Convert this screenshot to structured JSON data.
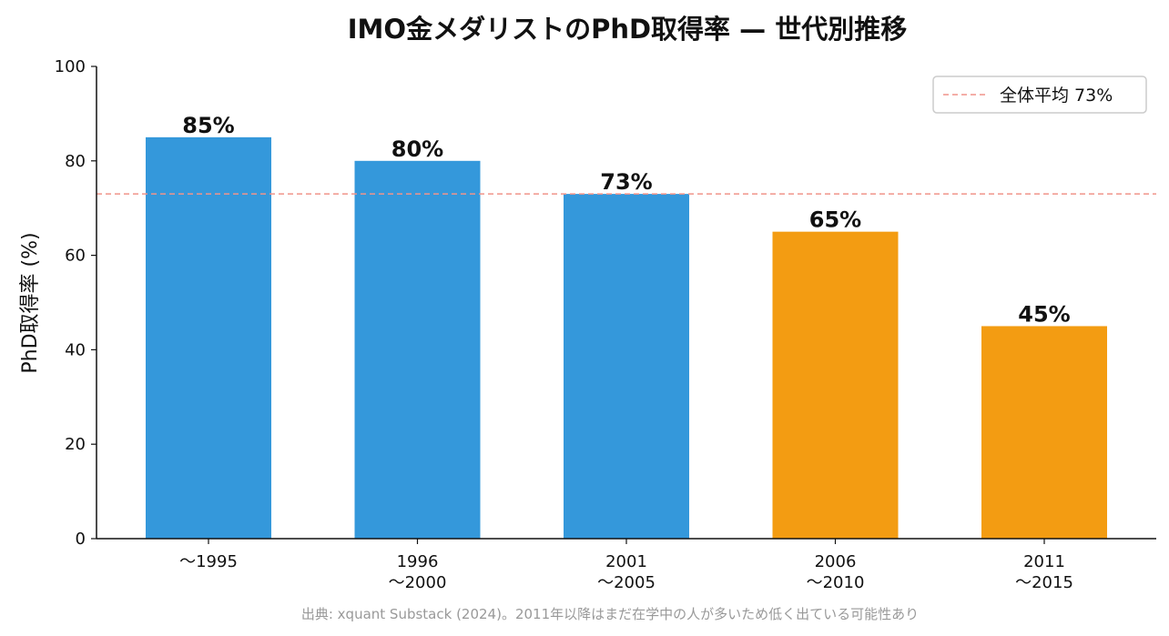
{
  "chart_data": {
    "type": "bar",
    "title": "IMO金メダリストのPhD取得率 — 世代別推移",
    "ylabel": "PhD取得率 (%)",
    "xlabel": "",
    "ylim": [
      0,
      100
    ],
    "yticks": [
      0,
      20,
      40,
      60,
      80,
      100
    ],
    "categories": [
      [
        "〜1995"
      ],
      [
        "1996",
        "〜2000"
      ],
      [
        "2001",
        "〜2005"
      ],
      [
        "2006",
        "〜2010"
      ],
      [
        "2011",
        "〜2015"
      ]
    ],
    "values": [
      85,
      80,
      73,
      65,
      45
    ],
    "value_labels": [
      "85%",
      "80%",
      "73%",
      "65%",
      "45%"
    ],
    "bar_colors": [
      "#3498db",
      "#3498db",
      "#3498db",
      "#f39c12",
      "#f39c12"
    ],
    "reference_line": {
      "value": 73,
      "label": "全体平均 73%",
      "color": "#f1948a",
      "style": "dashed"
    },
    "legend": {
      "placement": "top-right"
    },
    "grid": false
  },
  "source_note": "出典: xquant Substack (2024)。2011年以降はまだ在学中の人が多いため低く出ている可能性あり"
}
